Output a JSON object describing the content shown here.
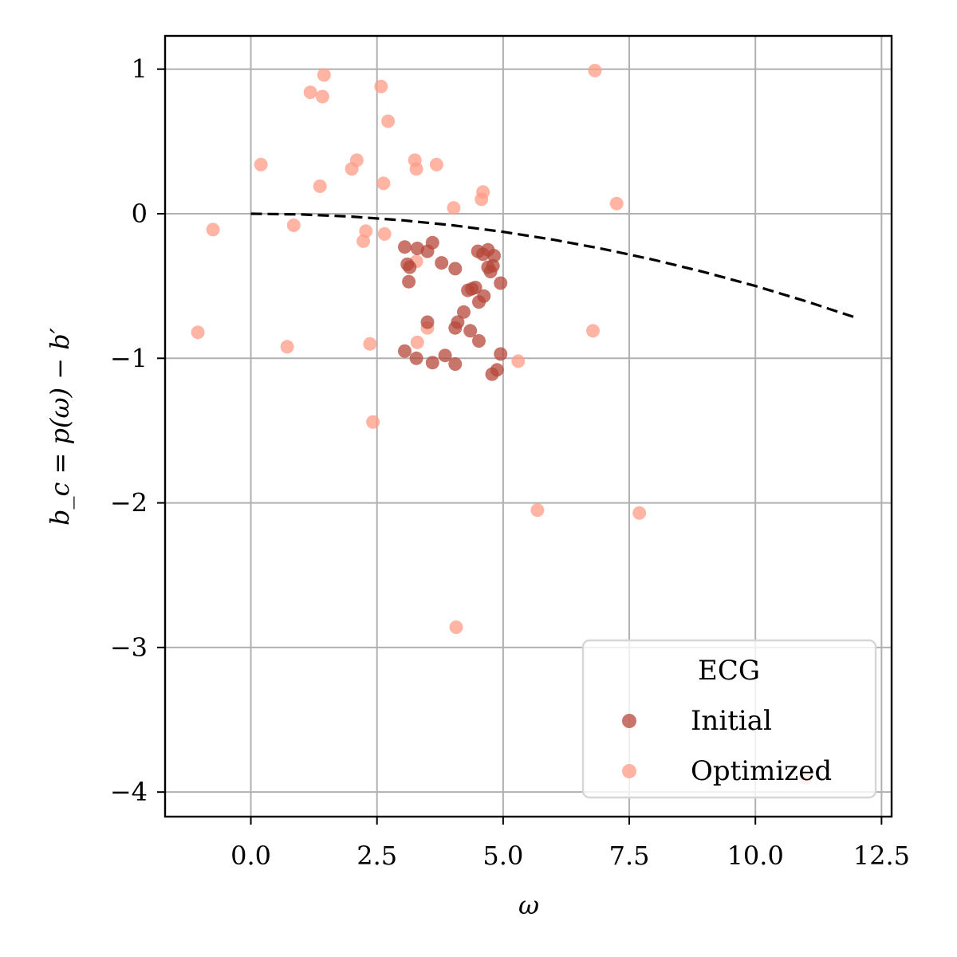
{
  "chart_data": {
    "type": "scatter",
    "title": "",
    "xlabel": "ω",
    "ylabel": "b_c = p(ω) − b′",
    "xlim": [
      -1.7,
      12.7
    ],
    "ylim": [
      -4.17,
      1.23
    ],
    "xticks": [
      0.0,
      2.5,
      5.0,
      7.5,
      10.0,
      12.5
    ],
    "xtick_labels": [
      "0.0",
      "2.5",
      "5.0",
      "7.5",
      "10.0",
      "12.5"
    ],
    "yticks": [
      1,
      0,
      -1,
      -2,
      -3,
      -4
    ],
    "ytick_labels": [
      "1",
      "0",
      "−1",
      "−2",
      "−3",
      "−4"
    ],
    "grid": true,
    "legend": {
      "title": "ECG",
      "position": "lower-right"
    },
    "colors": {
      "initial": "#b5473a",
      "optimized": "#ff9b85",
      "curve": "#000000",
      "grid": "#b0b0b0"
    },
    "series": [
      {
        "name": "Initial",
        "points": [
          [
            3.05,
            -0.23
          ],
          [
            3.3,
            -0.24
          ],
          [
            3.6,
            -0.2
          ],
          [
            3.1,
            -0.35
          ],
          [
            3.15,
            -0.37
          ],
          [
            3.13,
            -0.47
          ],
          [
            3.5,
            -0.26
          ],
          [
            3.78,
            -0.34
          ],
          [
            4.05,
            -0.38
          ],
          [
            4.5,
            -0.26
          ],
          [
            4.6,
            -0.28
          ],
          [
            4.7,
            -0.25
          ],
          [
            4.82,
            -0.29
          ],
          [
            4.7,
            -0.37
          ],
          [
            4.75,
            -0.4
          ],
          [
            4.8,
            -0.36
          ],
          [
            4.95,
            -0.48
          ],
          [
            4.3,
            -0.53
          ],
          [
            4.38,
            -0.52
          ],
          [
            4.45,
            -0.51
          ],
          [
            4.62,
            -0.57
          ],
          [
            4.52,
            -0.61
          ],
          [
            4.22,
            -0.68
          ],
          [
            4.1,
            -0.75
          ],
          [
            3.5,
            -0.75
          ],
          [
            4.05,
            -0.79
          ],
          [
            4.35,
            -0.81
          ],
          [
            4.52,
            -0.88
          ],
          [
            3.05,
            -0.95
          ],
          [
            3.28,
            -1.0
          ],
          [
            3.6,
            -1.03
          ],
          [
            3.85,
            -0.98
          ],
          [
            4.05,
            -1.04
          ],
          [
            4.95,
            -0.97
          ],
          [
            4.88,
            -1.08
          ],
          [
            4.78,
            -1.11
          ]
        ]
      },
      {
        "name": "Optimized",
        "points": [
          [
            1.18,
            0.84
          ],
          [
            1.42,
            0.81
          ],
          [
            1.45,
            0.96
          ],
          [
            2.58,
            0.88
          ],
          [
            2.72,
            0.64
          ],
          [
            6.82,
            0.99
          ],
          [
            0.2,
            0.34
          ],
          [
            2.0,
            0.31
          ],
          [
            2.1,
            0.37
          ],
          [
            3.25,
            0.37
          ],
          [
            3.28,
            0.31
          ],
          [
            3.68,
            0.34
          ],
          [
            1.37,
            0.19
          ],
          [
            2.63,
            0.21
          ],
          [
            4.6,
            0.15
          ],
          [
            4.57,
            0.1
          ],
          [
            4.02,
            0.04
          ],
          [
            7.25,
            0.07
          ],
          [
            -0.75,
            -0.11
          ],
          [
            0.85,
            -0.08
          ],
          [
            2.28,
            -0.12
          ],
          [
            2.23,
            -0.19
          ],
          [
            2.65,
            -0.14
          ],
          [
            3.28,
            -0.33
          ],
          [
            3.5,
            -0.79
          ],
          [
            3.3,
            -0.89
          ],
          [
            -1.05,
            -0.82
          ],
          [
            0.72,
            -0.92
          ],
          [
            2.36,
            -0.9
          ],
          [
            6.78,
            -0.81
          ],
          [
            5.3,
            -1.02
          ],
          [
            2.42,
            -1.44
          ],
          [
            5.68,
            -2.05
          ],
          [
            7.7,
            -2.07
          ],
          [
            4.07,
            -2.86
          ],
          [
            11.0,
            -3.9
          ]
        ]
      }
    ],
    "curve": {
      "style": "dashed",
      "points": [
        [
          0,
          0
        ],
        [
          1,
          -0.005
        ],
        [
          2,
          -0.02
        ],
        [
          3,
          -0.045
        ],
        [
          4,
          -0.08
        ],
        [
          5,
          -0.125
        ],
        [
          6,
          -0.18
        ],
        [
          7,
          -0.245
        ],
        [
          8,
          -0.32
        ],
        [
          9,
          -0.405
        ],
        [
          10,
          -0.5
        ],
        [
          11,
          -0.605
        ],
        [
          12,
          -0.72
        ]
      ]
    }
  }
}
